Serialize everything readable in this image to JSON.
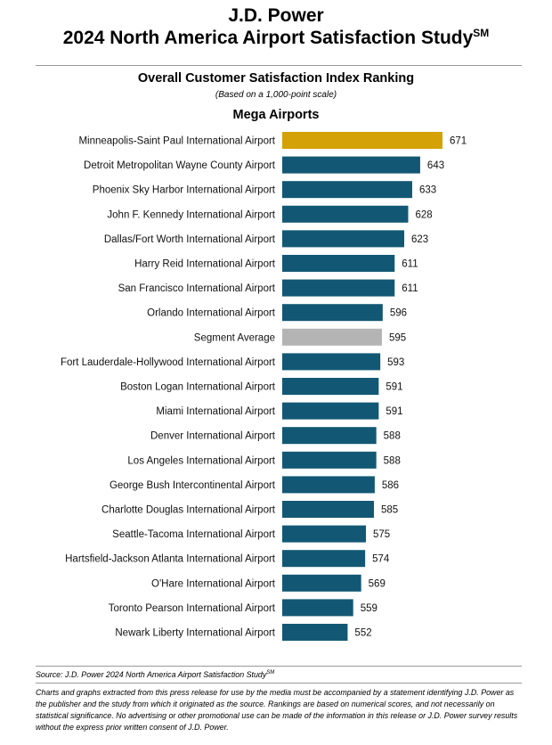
{
  "header": {
    "title_line1": "J.D. Power",
    "title_line2": "2024 North America Airport Satisfaction Study",
    "title_sup": "SM",
    "subtitle": "Overall Customer Satisfaction Index Ranking",
    "scale_note": "(Based on a 1,000-point scale)",
    "segment": "Mega Airports"
  },
  "colors": {
    "bar": "#125874",
    "highlight": "#D4A106",
    "average": "#B4B4B4"
  },
  "chart_data": {
    "type": "bar",
    "orientation": "horizontal",
    "categories": [
      "Minneapolis-Saint Paul International Airport",
      "Detroit Metropolitan Wayne County Airport",
      "Phoenix Sky Harbor International Airport",
      "John F. Kennedy International Airport",
      "Dallas/Fort Worth International Airport",
      "Harry Reid International Airport",
      "San Francisco International Airport",
      "Orlando International Airport",
      "Segment Average",
      "Fort Lauderdale-Hollywood International Airport",
      "Boston Logan International Airport",
      "Miami International Airport",
      "Denver International Airport",
      "Los Angeles International Airport",
      "George Bush Intercontinental Airport",
      "Charlotte Douglas International Airport",
      "Seattle-Tacoma International Airport",
      "Hartsfield-Jackson Atlanta International Airport",
      "O'Hare International Airport",
      "Toronto Pearson International Airport",
      "Newark Liberty International Airport"
    ],
    "values": [
      671,
      643,
      633,
      628,
      623,
      611,
      611,
      596,
      595,
      593,
      591,
      591,
      588,
      588,
      586,
      585,
      575,
      574,
      569,
      559,
      552
    ],
    "highlight": [
      0
    ],
    "average": [
      8
    ],
    "xlim": [
      470,
      671
    ],
    "grid": false,
    "axes_visible": false,
    "data_labels": true
  },
  "footer": {
    "source": "Source: J.D. Power 2024 North America Airport Satisfaction Study",
    "source_sup": "SM",
    "disclaimer": "Charts and graphs extracted from this press release for use by the media must be accompanied by a statement identifying J.D. Power as the publisher and the study from which it originated as the source. Rankings are based on numerical scores, and not necessarily on statistical significance. No advertising or other promotional use can be made of the information in this release or J.D. Power survey results without the express prior written consent of J.D. Power."
  }
}
